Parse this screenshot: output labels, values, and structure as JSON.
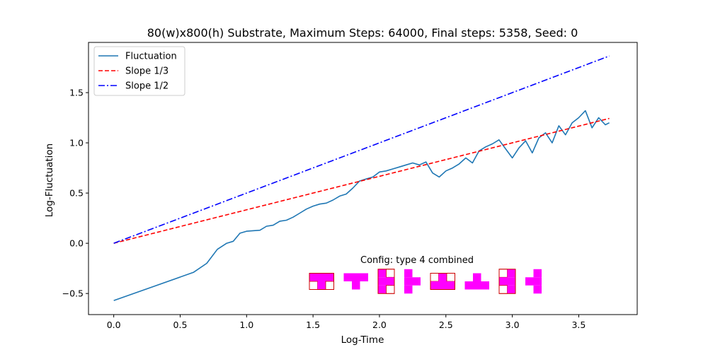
{
  "chart_data": {
    "type": "line",
    "title": "80(w)x800(h) Substrate, Maximum Steps: 64000, Final steps: 5358, Seed: 0",
    "xlabel": "Log-Time",
    "ylabel": "Log-Fluctuation",
    "xlim": [
      -0.19,
      3.94
    ],
    "ylim": [
      -0.71,
      2.0
    ],
    "x_ticks": [
      0.0,
      0.5,
      1.0,
      1.5,
      2.0,
      2.5,
      3.0,
      3.5
    ],
    "x_tick_labels": [
      "0.0",
      "0.5",
      "1.0",
      "1.5",
      "2.0",
      "2.5",
      "3.0",
      "3.5"
    ],
    "y_ticks": [
      -0.5,
      0.0,
      0.5,
      1.0,
      1.5
    ],
    "y_tick_labels": [
      "−0.5",
      "0.0",
      "0.5",
      "1.0",
      "1.5"
    ],
    "grid": false,
    "legend_position": "top-left",
    "series": [
      {
        "name": "Fluctuation",
        "style": "solid",
        "color": "#1f77b4",
        "x": [
          0.0,
          0.3,
          0.6,
          0.7,
          0.78,
          0.85,
          0.9,
          0.95,
          1.0,
          1.1,
          1.15,
          1.2,
          1.25,
          1.3,
          1.35,
          1.4,
          1.45,
          1.5,
          1.55,
          1.6,
          1.65,
          1.7,
          1.75,
          1.8,
          1.85,
          1.9,
          1.95,
          2.0,
          2.05,
          2.1,
          2.15,
          2.2,
          2.25,
          2.3,
          2.35,
          2.4,
          2.45,
          2.5,
          2.55,
          2.6,
          2.65,
          2.7,
          2.75,
          2.8,
          2.85,
          2.9,
          2.95,
          3.0,
          3.05,
          3.1,
          3.15,
          3.2,
          3.25,
          3.3,
          3.35,
          3.4,
          3.45,
          3.5,
          3.55,
          3.6,
          3.65,
          3.7,
          3.73
        ],
        "values": [
          -0.57,
          -0.43,
          -0.29,
          -0.2,
          -0.06,
          0.0,
          0.02,
          0.1,
          0.12,
          0.13,
          0.17,
          0.18,
          0.22,
          0.23,
          0.26,
          0.3,
          0.34,
          0.37,
          0.39,
          0.4,
          0.43,
          0.47,
          0.49,
          0.55,
          0.62,
          0.64,
          0.66,
          0.71,
          0.72,
          0.74,
          0.76,
          0.78,
          0.8,
          0.78,
          0.81,
          0.7,
          0.66,
          0.72,
          0.75,
          0.79,
          0.85,
          0.8,
          0.92,
          0.96,
          0.99,
          1.03,
          0.94,
          0.85,
          0.95,
          1.02,
          0.9,
          1.05,
          1.1,
          1.0,
          1.17,
          1.08,
          1.2,
          1.25,
          1.32,
          1.15,
          1.25,
          1.18,
          1.2
        ]
      },
      {
        "name": "Slope 1/3",
        "style": "dashed",
        "color": "#ff0000",
        "x": [
          0.0,
          3.73
        ],
        "values": [
          0.0,
          1.243
        ]
      },
      {
        "name": "Slope 1/2",
        "style": "dashdot",
        "color": "#0000ff",
        "x": [
          0.0,
          3.73
        ],
        "values": [
          0.0,
          1.865
        ]
      }
    ],
    "annotations": [
      {
        "text": "Config:  type 4 combined"
      }
    ]
  },
  "config_glyphs": {
    "fill_color": "#ff00ff",
    "cell_border_color": "#cc0000",
    "grids": [
      [
        [
          1,
          1,
          1
        ],
        [
          0,
          1,
          0
        ]
      ],
      [
        [
          1,
          1,
          1
        ],
        [
          0,
          1,
          0
        ]
      ],
      [
        [
          1,
          0
        ],
        [
          1,
          1
        ],
        [
          1,
          0
        ]
      ],
      [
        [
          1,
          0
        ],
        [
          1,
          1
        ],
        [
          1,
          0
        ]
      ],
      [
        [
          0,
          1,
          0
        ],
        [
          1,
          1,
          1
        ]
      ],
      [
        [
          0,
          1,
          0
        ],
        [
          1,
          1,
          1
        ]
      ],
      [
        [
          0,
          1
        ],
        [
          1,
          1
        ],
        [
          0,
          1
        ]
      ],
      [
        [
          0,
          1
        ],
        [
          1,
          1
        ],
        [
          0,
          1
        ]
      ]
    ],
    "framed": [
      true,
      false,
      true,
      false,
      true,
      false,
      true,
      false
    ]
  }
}
